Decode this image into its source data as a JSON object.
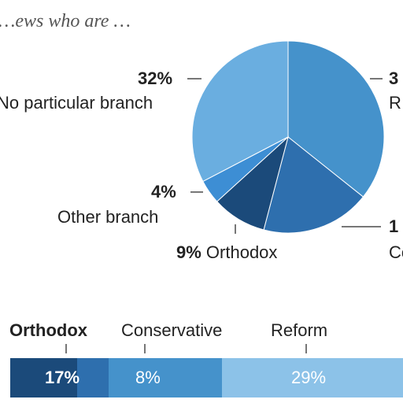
{
  "subtitle": "…ews who are …",
  "colors": {
    "reform": "#4592cb",
    "conservative": "#2e6fae",
    "orthodox": "#1b4a7a",
    "other": "#3d8ed4",
    "none": "#6aaee0",
    "bar_last": "#8cc2e8"
  },
  "pie_labels": {
    "none_pct": "32%",
    "none_name": "No particular branch",
    "other_pct": "4%",
    "other_name": "Other branch",
    "orthodox_pct": "9%",
    "orthodox_name": "Orthodox",
    "reform_pct": "3",
    "reform_name": "R",
    "conservative_pct": "1",
    "conservative_name": "Co"
  },
  "bar_headers": {
    "orthodox": "Orthodox",
    "conservative": "Conservative",
    "reform": "Reform"
  },
  "bar_labels": {
    "orthodox": "17%",
    "conservative": "8%",
    "reform": "29%"
  },
  "chart_data": [
    {
      "type": "pie",
      "slices": [
        {
          "label": "Reform",
          "value": 35,
          "color": "#4592cb"
        },
        {
          "label": "Conservative",
          "value": 18,
          "color": "#2e6fae"
        },
        {
          "label": "Orthodox",
          "value": 9,
          "color": "#1b4a7a"
        },
        {
          "label": "Other branch",
          "value": 4,
          "color": "#3d8ed4"
        },
        {
          "label": "No particular branch",
          "value": 32,
          "color": "#6aaee0"
        }
      ]
    },
    {
      "type": "bar",
      "orientation": "horizontal-stacked",
      "categories": [
        "Orthodox",
        "Conservative",
        "Reform",
        ""
      ],
      "values": [
        17,
        8,
        29,
        46
      ],
      "value_labels": [
        "17%",
        "8%",
        "29%",
        ""
      ]
    }
  ]
}
